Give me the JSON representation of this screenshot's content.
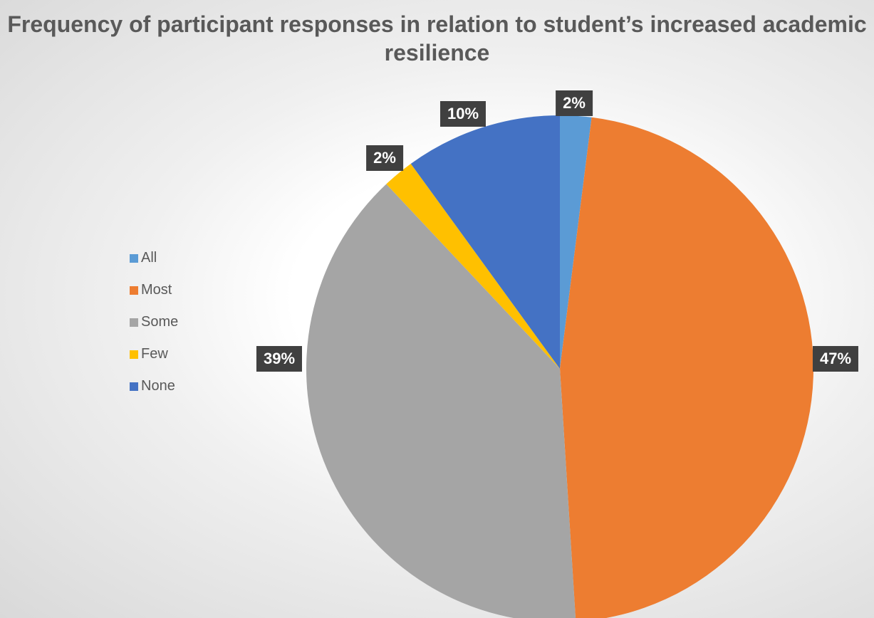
{
  "chart_data": {
    "type": "pie",
    "title": "Frequency of participant responses in relation to student’s increased academic resilience",
    "categories": [
      "All",
      "Most",
      "Some",
      "Few",
      "None"
    ],
    "values": [
      2,
      47,
      39,
      2,
      10
    ],
    "labels": [
      "2%",
      "47%",
      "39%",
      "2%",
      "10%"
    ],
    "colors": [
      "#5b9bd5",
      "#ed7d31",
      "#a5a5a5",
      "#ffc000",
      "#4472c4"
    ],
    "legend": "left"
  }
}
